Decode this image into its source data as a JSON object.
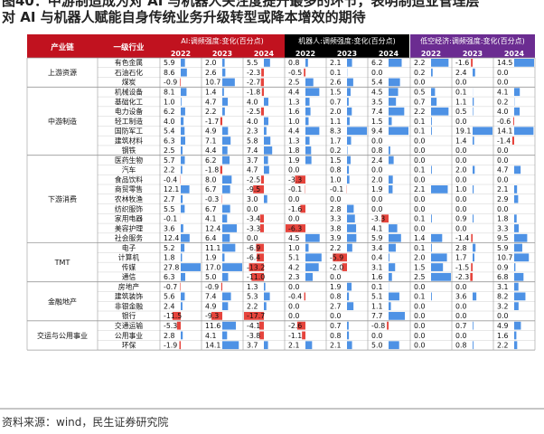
{
  "title": {
    "line1": "图40：中游制造成为对 AI 与机器人关注度提升最多的环节，表明制造业管理层",
    "line2": "对 AI 与机器人赋能自身传统业务升级转型或降本增效的期待"
  },
  "source": "资料来源：wind，民生证券研究院",
  "colors": {
    "header_red": "#c1121f",
    "header_black": "#000000",
    "header_purple": "#6b2c91",
    "bar_pos": "#2f7fe0",
    "bar_neg": "#e2231a"
  },
  "chart_data": {
    "type": "table",
    "headers": {
      "chain": "产业链",
      "industry": "一级行业",
      "groups": [
        "AI:调频强度:变化(百分点)",
        "机器人:调频强度:变化(百分点)",
        "低空经济:调频强度:变化(百分点)"
      ],
      "years": [
        "2022",
        "2023",
        "2024"
      ]
    },
    "sections": [
      {
        "name": "上游资源",
        "rows": [
          {
            "industry": "有色金属",
            "values": [
              5.9,
              2.0,
              5.5,
              0.8,
              2.1,
              6.2,
              2.2,
              -1.6,
              14.5
            ]
          },
          {
            "industry": "石油石化",
            "values": [
              8.6,
              2.6,
              -2.3,
              -0.5,
              0.1,
              0.0,
              0.2,
              2.4,
              0.0
            ]
          },
          {
            "industry": "煤炭",
            "values": [
              -0.9,
              10.7,
              -2.7,
              2.5,
              2.6,
              5.4,
              0.0,
              0.0,
              0.0
            ]
          }
        ]
      },
      {
        "name": "中游制造",
        "rows": [
          {
            "industry": "机械设备",
            "values": [
              8.1,
              1.4,
              -1.8,
              4.4,
              1.5,
              4.5,
              0.5,
              0.1,
              4.1
            ]
          },
          {
            "industry": "基础化工",
            "values": [
              1.0,
              4.7,
              4.0,
              1.3,
              0.7,
              3.5,
              0.7,
              1.1,
              0.2
            ]
          },
          {
            "industry": "电力设备",
            "values": [
              6.2,
              2.2,
              -2.5,
              1.6,
              2.0,
              7.4,
              2.2,
              0.5,
              4.0
            ]
          },
          {
            "industry": "轻工制造",
            "values": [
              4.0,
              -1.7,
              4.0,
              1.0,
              1.1,
              1.5,
              0.1,
              0.0,
              -0.6
            ]
          },
          {
            "industry": "国防军工",
            "values": [
              5.4,
              4.9,
              2.3,
              4.4,
              8.3,
              9.4,
              0.1,
              19.1,
              14.1
            ]
          },
          {
            "industry": "建筑材料",
            "values": [
              6.3,
              7.1,
              5.8,
              1.3,
              1.7,
              0.0,
              0.0,
              1.4,
              -1.4
            ]
          },
          {
            "industry": "钢铁",
            "values": [
              2.5,
              4.4,
              7.4,
              1.8,
              0.2,
              0.8,
              0.0,
              0.0,
              0.0
            ]
          }
        ]
      },
      {
        "name": "下游消费",
        "rows": [
          {
            "industry": "医药生物",
            "values": [
              5.7,
              6.2,
              3.7,
              1.9,
              1.5,
              2.4,
              0.0,
              0.0,
              0.0
            ]
          },
          {
            "industry": "汽车",
            "values": [
              2.2,
              -1.8,
              4.7,
              0.0,
              0.8,
              0.0,
              0.1,
              2.0,
              4.7
            ]
          },
          {
            "industry": "食品饮料",
            "values": [
              -0.4,
              8.0,
              -2.5,
              -3.3,
              1.0,
              2.0,
              0.0,
              0.0,
              0.0
            ]
          },
          {
            "industry": "商贸零售",
            "values": [
              12.1,
              6.7,
              -9.5,
              -0.1,
              -0.1,
              1.9,
              2.1,
              1.0,
              2.1
            ]
          },
          {
            "industry": "农林牧渔",
            "values": [
              2.7,
              -0.3,
              3.0,
              0.0,
              0.0,
              0.0,
              0.0,
              0.0,
              2.9
            ]
          },
          {
            "industry": "纺织服饰",
            "values": [
              5.5,
              6.7,
              0.0,
              -1.6,
              2.8,
              0.0,
              0.0,
              0.0,
              0.0
            ]
          },
          {
            "industry": "家用电器",
            "values": [
              -0.1,
              4.1,
              -3.4,
              0.0,
              3.3,
              -3.3,
              0.1,
              0.9,
              1.8
            ]
          },
          {
            "industry": "美容护理",
            "values": [
              3.6,
              12.4,
              -3.3,
              -6.3,
              3.8,
              4.1,
              0.0,
              0.0,
              3.3
            ]
          },
          {
            "industry": "社会服务",
            "values": [
              12.4,
              6.4,
              0.0,
              4.5,
              3.9,
              5.9,
              1.4,
              -1.4,
              9.5
            ]
          }
        ]
      },
      {
        "name": "TMT",
        "rows": [
          {
            "industry": "电子",
            "values": [
              5.2,
              11.1,
              -6.9,
              1.0,
              2.2,
              3.4,
              0.1,
              2.8,
              5.9
            ]
          },
          {
            "industry": "计算机",
            "values": [
              1.8,
              1.9,
              -6.4,
              5.1,
              -5.9,
              0.4,
              2.0,
              1.7,
              10.7
            ]
          },
          {
            "industry": "传媒",
            "values": [
              27.8,
              17.0,
              -13.2,
              4.2,
              -2.0,
              3.1,
              1.5,
              -1.5,
              0.9
            ]
          },
          {
            "industry": "通信",
            "values": [
              6.3,
              5.0,
              -11.0,
              2.3,
              0.0,
              1.6,
              2.5,
              -2.3,
              6.8
            ]
          }
        ]
      },
      {
        "name": "金融地产",
        "rows": [
          {
            "industry": "房地产",
            "values": [
              -0.7,
              -0.9,
              1.3,
              0.0,
              1.9,
              0.1,
              0.0,
              0.0,
              3.1
            ]
          },
          {
            "industry": "建筑装饰",
            "values": [
              5.6,
              7.4,
              5.3,
              -0.4,
              0.8,
              5.1,
              0.1,
              3.6,
              8.2
            ]
          },
          {
            "industry": "非银金融",
            "values": [
              2.4,
              4.9,
              2.2,
              0.0,
              2.7,
              1.1,
              0.0,
              0.0,
              3.2
            ]
          },
          {
            "industry": "银行",
            "values": [
              -11.5,
              -9.3,
              -17.7,
              0.0,
              0.0,
              7.7,
              0.0,
              0.0,
              0.0
            ]
          }
        ]
      },
      {
        "name": "交运与公用事业",
        "rows": [
          {
            "industry": "交通运输",
            "values": [
              -5.3,
              11.6,
              -4.1,
              -2.6,
              0.7,
              -0.8,
              0.0,
              0.7,
              4.9
            ]
          },
          {
            "industry": "公用事业",
            "values": [
              2.8,
              4.1,
              -3.8,
              -1.1,
              0.8,
              0.0,
              0.0,
              0.0,
              1.6
            ]
          },
          {
            "industry": "环保",
            "values": [
              -1.9,
              14.1,
              3.7,
              2.1,
              2.1,
              5.0,
              0.0,
              0.8,
              2.2
            ]
          }
        ]
      }
    ]
  }
}
